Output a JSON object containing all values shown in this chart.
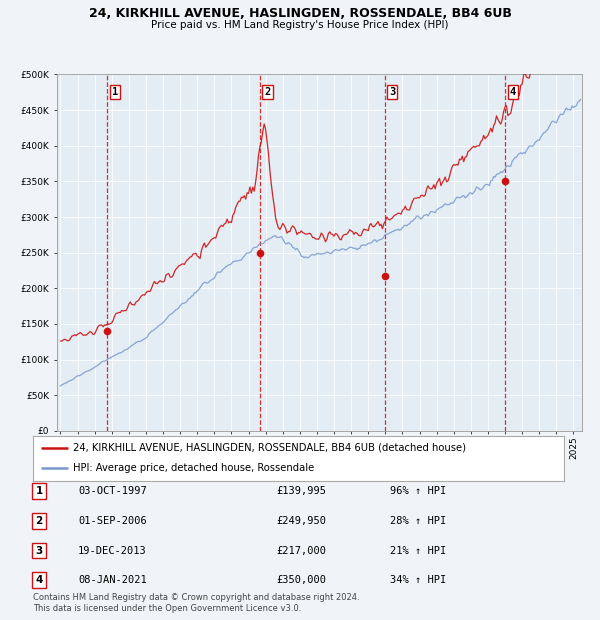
{
  "title1": "24, KIRKHILL AVENUE, HASLINGDEN, ROSSENDALE, BB4 6UB",
  "title2": "Price paid vs. HM Land Registry's House Price Index (HPI)",
  "hpi_label": "HPI: Average price, detached house, Rossendale",
  "price_label": "24, KIRKHILL AVENUE, HASLINGDEN, ROSSENDALE, BB4 6UB (detached house)",
  "hpi_color": "#7799cc",
  "price_color": "#cc1111",
  "bg_color": "#f0f4f8",
  "plot_bg": "#e4ecf4",
  "sales": [
    {
      "num": 1,
      "date": "03-OCT-1997",
      "price": 139995,
      "pct": "96%",
      "dir": "↑"
    },
    {
      "num": 2,
      "date": "01-SEP-2006",
      "price": 249950,
      "pct": "28%",
      "dir": "↑"
    },
    {
      "num": 3,
      "date": "19-DEC-2013",
      "price": 217000,
      "pct": "21%",
      "dir": "↑"
    },
    {
      "num": 4,
      "date": "08-JAN-2021",
      "price": 350000,
      "pct": "34%",
      "dir": "↑"
    }
  ],
  "sale_years": [
    1997.75,
    2006.67,
    2013.96,
    2021.02
  ],
  "sale_prices": [
    139995,
    249950,
    217000,
    350000
  ],
  "footer": "Contains HM Land Registry data © Crown copyright and database right 2024.\nThis data is licensed under the Open Government Licence v3.0.",
  "ylim_max": 500000,
  "xlim_start": 1994.8,
  "xlim_end": 2025.5
}
